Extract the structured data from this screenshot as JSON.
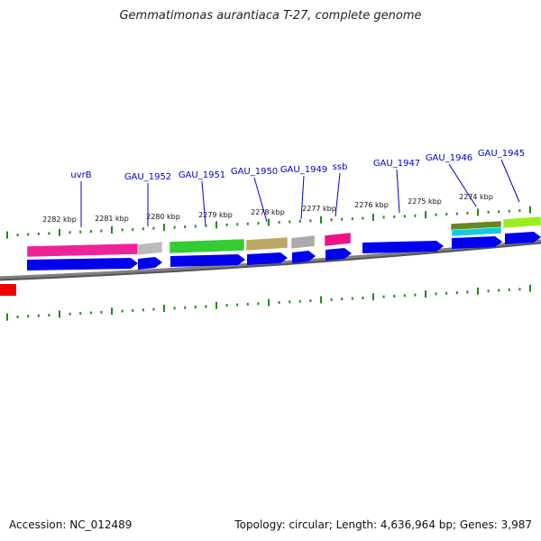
{
  "title": "Gemmatimonas aurantiaca T-27, complete genome",
  "footer": {
    "accession": "Accession: NC_012489",
    "stats": "Topology: circular; Length: 4,636,964 bp; Genes: 3,987"
  },
  "colors": {
    "cds": "#0000ee",
    "tick": "#228822",
    "backbone": "#808080",
    "label_line": "#0000cc"
  },
  "scale_labels": [
    "2282 kbp",
    "2281 kbp",
    "2280 kbp",
    "2279 kbp",
    "2278 kbp",
    "2277 kbp",
    "2276 kbp",
    "2275 kbp",
    "2274 kbp"
  ],
  "gene_labels": [
    "uvrB",
    "GAU_1952",
    "GAU_1951",
    "GAU_1950",
    "GAU_1949",
    "ssb",
    "GAU_1947",
    "GAU_1946",
    "GAU_1945"
  ],
  "category_colors": [
    "#ee2299",
    "#bbbbbb",
    "#33cc33",
    "#bbaa66",
    "#aaaaaa",
    "#ee1188",
    "#668822",
    "#99ee22",
    "#11ccdd",
    "#ee0000"
  ]
}
